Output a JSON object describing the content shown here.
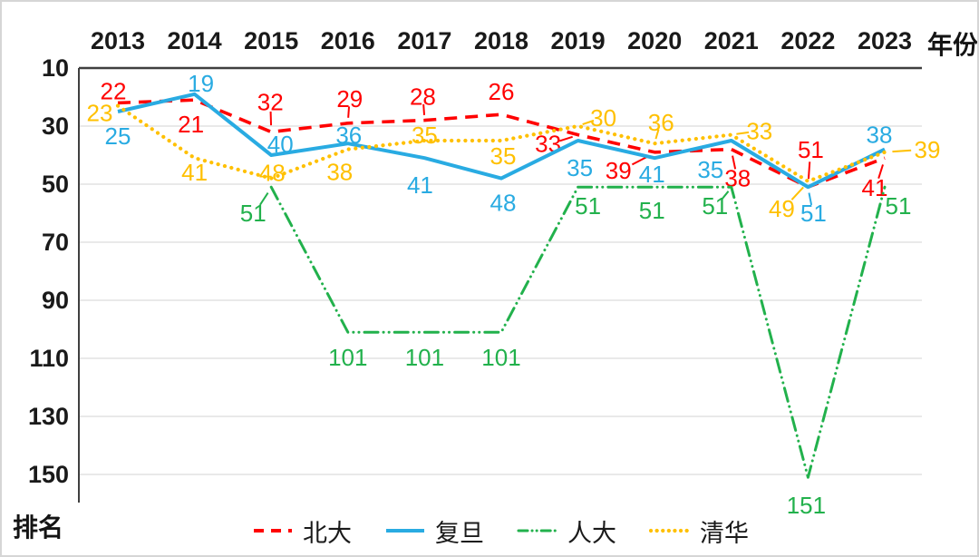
{
  "window": {
    "background": "#FFFFFF",
    "border_color": "#D6D6D6"
  },
  "chart_data": {
    "type": "line",
    "xlabel": "年份",
    "ylabel": "排名",
    "x": [
      "2013",
      "2014",
      "2015",
      "2016",
      "2017",
      "2018",
      "2019",
      "2020",
      "2021",
      "2022",
      "2023"
    ],
    "y_ticks": [
      10,
      30,
      50,
      70,
      90,
      110,
      130,
      150
    ],
    "ylim": [
      10,
      155
    ],
    "y_axis_inverted": true,
    "grid": true,
    "legend_position": "bottom",
    "axis_color": "#3F3F3F",
    "grid_color": "#DCDCDC",
    "tick_label_color": "#1A1A1A",
    "series": [
      {
        "name": "北大",
        "color": "#FF0000",
        "line_style": "dashed",
        "values": [
          22,
          21,
          32,
          29,
          28,
          26,
          33,
          39,
          38,
          51,
          41
        ],
        "label_offsets": [
          [
            -5,
            -13
          ],
          [
            -4,
            27
          ],
          [
            -1,
            -33
          ],
          [
            2,
            -27
          ],
          [
            -2,
            -26
          ],
          [
            0,
            -25
          ],
          [
            -33,
            10
          ],
          [
            -40,
            20
          ],
          [
            7,
            32
          ],
          [
            3,
            -41
          ],
          [
            -11,
            33
          ]
        ],
        "leader_points": [
          2,
          3,
          4,
          6,
          7,
          8,
          9,
          10
        ]
      },
      {
        "name": "复旦",
        "color": "#29ABE2",
        "line_style": "solid",
        "values": [
          25,
          19,
          40,
          36,
          41,
          48,
          35,
          41,
          35,
          51,
          38
        ],
        "label_offsets": [
          [
            0,
            27
          ],
          [
            7,
            -12
          ],
          [
            10,
            -12
          ],
          [
            1,
            -9
          ],
          [
            -5,
            30
          ],
          [
            2,
            27
          ],
          [
            2,
            30
          ],
          [
            -3,
            18
          ],
          [
            -23,
            32
          ],
          [
            6,
            29
          ],
          [
            -6,
            -16
          ]
        ],
        "leader_points": [
          9
        ]
      },
      {
        "name": "人大",
        "color": "#22B14C",
        "line_style": "dash-dot-dot",
        "values": [
          null,
          null,
          51,
          101,
          101,
          101,
          51,
          51,
          51,
          151,
          51
        ],
        "label_offsets": [
          null,
          null,
          [
            -20,
            29
          ],
          [
            0,
            28
          ],
          [
            0,
            28
          ],
          [
            0,
            28
          ],
          [
            11,
            21
          ],
          [
            -3,
            26
          ],
          [
            -18,
            21
          ],
          [
            -2,
            31
          ],
          [
            15,
            21
          ]
        ],
        "leader_points": [
          2,
          8
        ]
      },
      {
        "name": "清华",
        "color": "#FFC000",
        "line_style": "dotted",
        "values": [
          23,
          41,
          48,
          38,
          35,
          35,
          30,
          36,
          33,
          49,
          39
        ],
        "label_offsets": [
          [
            -20,
            8
          ],
          [
            0,
            16
          ],
          [
            1,
            -6
          ],
          [
            -9,
            25
          ],
          [
            0,
            -6
          ],
          [
            2,
            17
          ],
          [
            28,
            -9
          ],
          [
            7,
            -23
          ],
          [
            31,
            -4
          ],
          [
            -29,
            30
          ],
          [
            47,
            -3
          ]
        ],
        "leader_points": [
          6,
          7,
          8,
          9,
          10
        ]
      }
    ]
  }
}
